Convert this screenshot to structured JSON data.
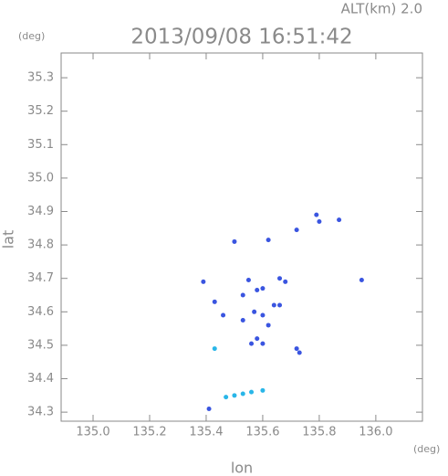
{
  "chart_data": {
    "type": "scatter",
    "header": "ALT(km) 2.0",
    "title": "2013/09/08 16:51:42",
    "y_unit": "(deg)",
    "x_unit": "(deg)",
    "ylabel": "lat",
    "xlabel": "lon",
    "xlim": [
      134.887,
      136.165
    ],
    "ylim": [
      34.273,
      35.374
    ],
    "xticks": [
      {
        "value": 135.0,
        "label": "135.0"
      },
      135.2,
      135.4,
      135.6,
      135.8,
      {
        "value": 136.0,
        "label": "136.0"
      }
    ],
    "yticks": [
      34.3,
      34.4,
      34.5,
      34.6,
      34.7,
      34.8,
      34.9,
      {
        "value": 35.0,
        "label": "35.0"
      },
      35.1,
      35.2,
      35.3
    ],
    "x": [
      135.8,
      135.79,
      135.87,
      135.95,
      135.62,
      135.5,
      135.72,
      135.39,
      135.43,
      135.46,
      135.53,
      135.55,
      135.58,
      135.6,
      135.66,
      135.68,
      135.57,
      135.6,
      135.62,
      135.64,
      135.66,
      135.53,
      135.58,
      135.56,
      135.6,
      135.72,
      135.73,
      135.43,
      135.47,
      135.5,
      135.53,
      135.56,
      135.6,
      135.41
    ],
    "values": [
      34.87,
      34.89,
      34.875,
      34.695,
      34.815,
      34.81,
      34.845,
      34.69,
      34.63,
      34.59,
      34.65,
      34.695,
      34.665,
      34.67,
      34.7,
      34.69,
      34.6,
      34.59,
      34.56,
      34.62,
      34.62,
      34.575,
      34.52,
      34.505,
      34.505,
      34.49,
      34.478,
      34.49,
      34.345,
      34.35,
      34.355,
      34.36,
      34.365,
      34.31
    ],
    "colors": [
      "#3a55e0",
      "#3a55e0",
      "#3a55e0",
      "#3a55e0",
      "#3a55e0",
      "#3a55e0",
      "#3a55e0",
      "#3a55e0",
      "#3a55e0",
      "#3a55e0",
      "#3a55e0",
      "#3a55e0",
      "#3a55e0",
      "#3a55e0",
      "#3a55e0",
      "#3a55e0",
      "#3a55e0",
      "#3a55e0",
      "#3a55e0",
      "#3a55e0",
      "#3a55e0",
      "#3a55e0",
      "#3a55e0",
      "#3a55e0",
      "#3a55e0",
      "#3a55e0",
      "#3a55e0",
      "#29b6e8",
      "#29b6e8",
      "#29b6e8",
      "#29b6e8",
      "#29b6e8",
      "#29b6e8",
      "#3a55e0"
    ]
  }
}
